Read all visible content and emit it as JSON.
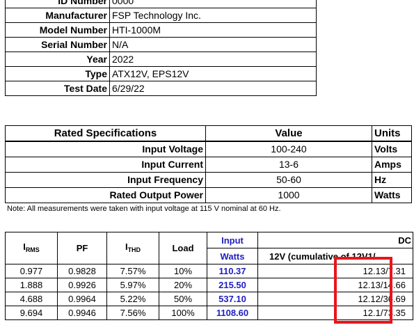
{
  "info": {
    "rows": [
      {
        "label": "ID Number",
        "value": "0000"
      },
      {
        "label": "Manufacturer",
        "value": "FSP Technology Inc."
      },
      {
        "label": "Model Number",
        "value": "HTI-1000M"
      },
      {
        "label": "Serial Number",
        "value": "N/A"
      },
      {
        "label": "Year",
        "value": "2022"
      },
      {
        "label": "Type",
        "value": "ATX12V, EPS12V"
      },
      {
        "label": "Test Date",
        "value": "6/29/22"
      }
    ]
  },
  "rated": {
    "headers": [
      "Rated Specifications",
      "Value",
      "Units"
    ],
    "rows": [
      {
        "label": "Input Voltage",
        "value": "100-240",
        "unit": "Volts"
      },
      {
        "label": "Input Current",
        "value": "13-6",
        "unit": "Amps"
      },
      {
        "label": "Input Frequency",
        "value": "50-60",
        "unit": "Hz"
      },
      {
        "label": "Rated Output Power",
        "value": "1000",
        "unit": "Watts"
      }
    ]
  },
  "note": "Note: All measurements were taken with input voltage at 115 V nominal at 60 Hz.",
  "measurements": {
    "headers": {
      "irms_main": "I",
      "irms_sub": "RMS",
      "pf": "PF",
      "ithd_main": "I",
      "ithd_sub": "THD",
      "load": "Load",
      "input_watts_1": "Input",
      "input_watts_2": "Watts",
      "dc": "DC",
      "dc_sub": "12V (cumulative of 12V1/"
    },
    "rows": [
      {
        "irms": "0.977",
        "pf": "0.9828",
        "ithd": "7.57%",
        "load": "10%",
        "watts": "110.37",
        "dc": "12.13/7.31"
      },
      {
        "irms": "1.888",
        "pf": "0.9926",
        "ithd": "5.97%",
        "load": "20%",
        "watts": "215.50",
        "dc": "12.13/14.66"
      },
      {
        "irms": "4.688",
        "pf": "0.9964",
        "ithd": "5.22%",
        "load": "50%",
        "watts": "537.10",
        "dc": "12.12/36.69"
      },
      {
        "irms": "9.694",
        "pf": "0.9946",
        "ithd": "7.56%",
        "load": "100%",
        "watts": "1108.60",
        "dc": "12.1/73.35"
      }
    ]
  },
  "colors": {
    "input_watts": "#2020c0",
    "highlight_box": "#e8151b"
  }
}
